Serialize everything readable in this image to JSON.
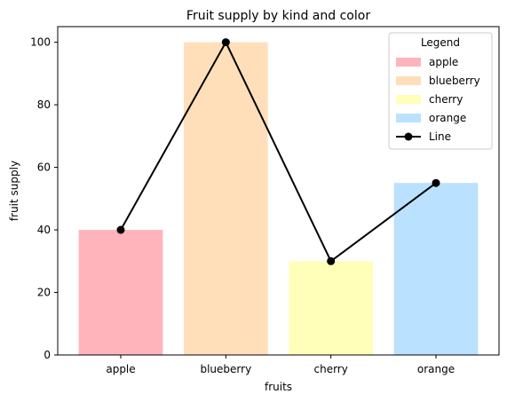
{
  "chart_data": {
    "type": "bar",
    "title": "Fruit supply by kind and color",
    "xlabel": "fruits",
    "ylabel": "fruit supply",
    "categories": [
      "apple",
      "blueberry",
      "cherry",
      "orange"
    ],
    "values": [
      40,
      100,
      30,
      55
    ],
    "bar_colors": [
      "#ffb3ba",
      "#ffdfba",
      "#ffffba",
      "#bae1ff"
    ],
    "ylim": [
      0,
      105
    ],
    "yticks": [
      0,
      20,
      40,
      60,
      80,
      100
    ],
    "grid": false,
    "line": {
      "name": "Line",
      "values": [
        40,
        100,
        30,
        55
      ],
      "color": "#000000"
    },
    "legend": {
      "title": "Legend",
      "placement": "top-right",
      "entries": [
        "apple",
        "blueberry",
        "cherry",
        "orange",
        "Line"
      ]
    }
  }
}
